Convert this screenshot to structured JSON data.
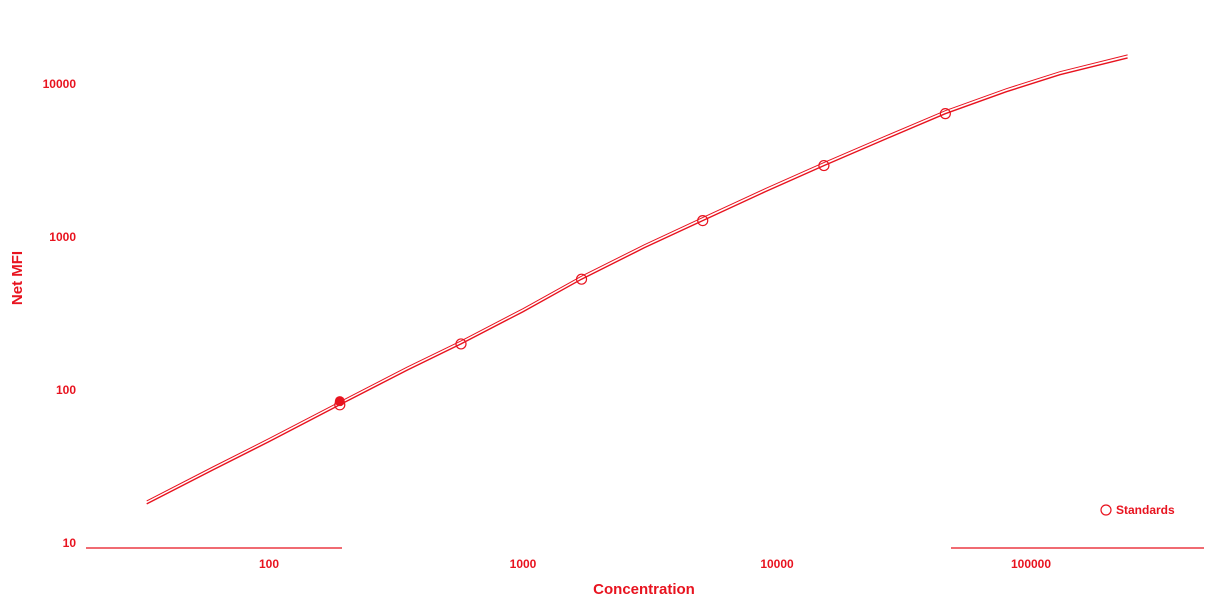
{
  "colors": {
    "accent": "#e8131f",
    "background": "#ffffff"
  },
  "chart_data": {
    "type": "scatter",
    "xlabel": "Concentration",
    "ylabel": "Net MFI",
    "x_scale": "log",
    "y_scale": "log",
    "xlim": [
      17,
      320000
    ],
    "ylim": [
      10,
      22000
    ],
    "x_ticks": [
      {
        "value": 100,
        "label": "100"
      },
      {
        "value": 1000,
        "label": "1000"
      },
      {
        "value": 10000,
        "label": "10000"
      },
      {
        "value": 100000,
        "label": "100000"
      }
    ],
    "y_ticks": [
      {
        "value": 10,
        "label": "10"
      },
      {
        "value": 100,
        "label": "100"
      },
      {
        "value": 1000,
        "label": "1000"
      },
      {
        "value": 10000,
        "label": "10000"
      }
    ],
    "grid": false,
    "legend_position": "bottom-right",
    "series": [
      {
        "name": "Standards",
        "marker": "open-circle",
        "points": [
          {
            "x": 190,
            "y": 80
          },
          {
            "x": 570,
            "y": 200
          },
          {
            "x": 1700,
            "y": 530
          },
          {
            "x": 5100,
            "y": 1280
          },
          {
            "x": 15300,
            "y": 2930
          },
          {
            "x": 46000,
            "y": 6400
          }
        ]
      }
    ],
    "highlighted_point": {
      "x": 190,
      "y": 82
    },
    "fit_curve": [
      {
        "x": 33,
        "y": 18
      },
      {
        "x": 60,
        "y": 30
      },
      {
        "x": 100,
        "y": 46
      },
      {
        "x": 190,
        "y": 80
      },
      {
        "x": 350,
        "y": 135
      },
      {
        "x": 570,
        "y": 200
      },
      {
        "x": 1000,
        "y": 325
      },
      {
        "x": 1700,
        "y": 530
      },
      {
        "x": 3000,
        "y": 850
      },
      {
        "x": 5100,
        "y": 1280
      },
      {
        "x": 9000,
        "y": 1980
      },
      {
        "x": 15300,
        "y": 2930
      },
      {
        "x": 27000,
        "y": 4400
      },
      {
        "x": 46000,
        "y": 6400
      },
      {
        "x": 80000,
        "y": 8900
      },
      {
        "x": 130000,
        "y": 11500
      },
      {
        "x": 240000,
        "y": 14800
      }
    ]
  }
}
